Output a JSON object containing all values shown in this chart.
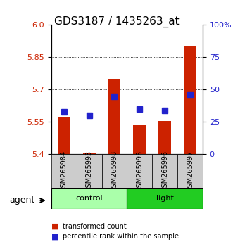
{
  "title": "GDS3187 / 1435263_at",
  "samples": [
    "GSM265984",
    "GSM265993",
    "GSM265998",
    "GSM265995",
    "GSM265996",
    "GSM265997"
  ],
  "groups": [
    "control",
    "control",
    "control",
    "light",
    "light",
    "light"
  ],
  "bar_values": [
    5.575,
    5.405,
    5.75,
    5.535,
    5.555,
    5.9
  ],
  "bar_base": 5.4,
  "percentile_values": [
    33,
    30,
    45,
    35,
    34,
    46
  ],
  "ylim_left": [
    5.4,
    6.0
  ],
  "ylim_right": [
    0,
    100
  ],
  "yticks_left": [
    5.4,
    5.55,
    5.7,
    5.85,
    6.0
  ],
  "yticks_right": [
    0,
    25,
    50,
    75,
    100
  ],
  "bar_color": "#cc2200",
  "dot_color": "#2222cc",
  "control_color": "#aaffaa",
  "light_color": "#22cc22",
  "group_label_control": "control",
  "group_label_light": "light",
  "agent_label": "agent",
  "legend_bar": "transformed count",
  "legend_dot": "percentile rank within the sample",
  "grid_dotted": true,
  "background_color": "#ffffff",
  "plot_bg": "#ffffff",
  "xlabel_color": "#cc2200",
  "ylabel_right_color": "#2222cc"
}
